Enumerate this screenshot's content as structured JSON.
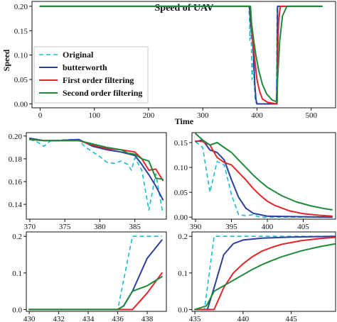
{
  "colors": {
    "Original": "#17becf",
    "butterworth": "#2b3f9e",
    "First order filtering": "#e3252b",
    "Second order filtering": "#1e8a3c"
  },
  "legend_entries": [
    "Original",
    "butterworth",
    "First order filtering",
    "Second order filtering"
  ],
  "chart_data": [
    {
      "type": "line",
      "title": "Speed of UAV",
      "xlabel": "Time",
      "ylabel": "Speed",
      "xlim": [
        -15,
        545
      ],
      "ylim": [
        -0.008,
        0.21
      ],
      "xticks": [
        0,
        100,
        200,
        300,
        400,
        500
      ],
      "yticks": [
        0.0,
        0.05,
        0.1,
        0.15,
        0.2
      ],
      "ytick_labels": [
        "0.00",
        "0.05",
        "0.10",
        "0.15",
        "0.20"
      ],
      "legend": "left",
      "series": [
        {
          "name": "Original",
          "dash": true,
          "points": [
            [
              0,
              0.2
            ],
            [
              385,
              0.2
            ],
            [
              386,
              0.18
            ],
            [
              387,
              0.13
            ],
            [
              388,
              0.2
            ],
            [
              389,
              0.15
            ],
            [
              391,
              0.05
            ],
            [
              393,
              0.09
            ],
            [
              395,
              0.04
            ],
            [
              397,
              0.005
            ],
            [
              400,
              0
            ],
            [
              436,
              0
            ],
            [
              437,
              0.2
            ],
            [
              520,
              0.2
            ]
          ]
        },
        {
          "name": "butterworth",
          "points": [
            [
              0,
              0.2
            ],
            [
              386,
              0.2
            ],
            [
              388,
              0.17
            ],
            [
              390,
              0.15
            ],
            [
              392,
              0.13
            ],
            [
              394,
              0.09
            ],
            [
              396,
              0.04
            ],
            [
              398,
              0.01
            ],
            [
              400,
              0
            ],
            [
              436,
              0
            ],
            [
              437,
              0.05
            ],
            [
              438,
              0.2
            ],
            [
              520,
              0.2
            ]
          ]
        },
        {
          "name": "First order filtering",
          "points": [
            [
              0,
              0.2
            ],
            [
              388,
              0.2
            ],
            [
              390,
              0.155
            ],
            [
              393,
              0.12
            ],
            [
              396,
              0.09
            ],
            [
              400,
              0.05
            ],
            [
              405,
              0.025
            ],
            [
              410,
              0.01
            ],
            [
              420,
              0.003
            ],
            [
              437,
              0
            ],
            [
              438,
              0.1
            ],
            [
              440,
              0.17
            ],
            [
              443,
              0.2
            ],
            [
              520,
              0.2
            ]
          ]
        },
        {
          "name": "Second order filtering",
          "points": [
            [
              0,
              0.2
            ],
            [
              388,
              0.2
            ],
            [
              390,
              0.165
            ],
            [
              394,
              0.13
            ],
            [
              398,
              0.1
            ],
            [
              403,
              0.07
            ],
            [
              410,
              0.04
            ],
            [
              418,
              0.02
            ],
            [
              428,
              0.008
            ],
            [
              437,
              0.004
            ],
            [
              438,
              0.05
            ],
            [
              442,
              0.13
            ],
            [
              447,
              0.18
            ],
            [
              455,
              0.2
            ],
            [
              520,
              0.2
            ]
          ]
        }
      ]
    },
    {
      "type": "line",
      "xlim": [
        369.5,
        389.5
      ],
      "ylim": [
        0.127,
        0.203
      ],
      "xticks": [
        370,
        375,
        380,
        385
      ],
      "yticks": [
        0.14,
        0.16,
        0.18,
        0.2
      ],
      "ytick_labels": [
        "0.14",
        "0.16",
        "0.18",
        "0.20"
      ],
      "series": [
        {
          "name": "Original",
          "dash": true,
          "points": [
            [
              370,
              0.197
            ],
            [
              371,
              0.195
            ],
            [
              372,
              0.191
            ],
            [
              373,
              0.196
            ],
            [
              376,
              0.197
            ],
            [
              377,
              0.196
            ],
            [
              378,
              0.19
            ],
            [
              379,
              0.186
            ],
            [
              380,
              0.182
            ],
            [
              381,
              0.177
            ],
            [
              382,
              0.176
            ],
            [
              383,
              0.178
            ],
            [
              384,
              0.175
            ],
            [
              384.5,
              0.17
            ],
            [
              385,
              0.181
            ],
            [
              386,
              0.17
            ],
            [
              387,
              0.135
            ],
            [
              388,
              0.167
            ],
            [
              389,
              0.132
            ]
          ]
        },
        {
          "name": "butterworth",
          "points": [
            [
              370,
              0.198
            ],
            [
              372,
              0.196
            ],
            [
              374,
              0.196
            ],
            [
              377,
              0.197
            ],
            [
              379,
              0.191
            ],
            [
              381,
              0.188
            ],
            [
              383,
              0.186
            ],
            [
              385,
              0.183
            ],
            [
              386,
              0.175
            ],
            [
              387,
              0.166
            ],
            [
              388,
              0.156
            ],
            [
              389,
              0.144
            ]
          ]
        },
        {
          "name": "First order filtering",
          "points": [
            [
              370,
              0.197
            ],
            [
              372,
              0.196
            ],
            [
              374,
              0.196
            ],
            [
              377,
              0.196
            ],
            [
              379,
              0.192
            ],
            [
              381,
              0.189
            ],
            [
              383,
              0.188
            ],
            [
              385,
              0.186
            ],
            [
              386,
              0.18
            ],
            [
              387,
              0.17
            ],
            [
              388,
              0.171
            ],
            [
              389,
              0.161
            ]
          ]
        },
        {
          "name": "Second order filtering",
          "points": [
            [
              370,
              0.197
            ],
            [
              372,
              0.196
            ],
            [
              374,
              0.196
            ],
            [
              377,
              0.196
            ],
            [
              379,
              0.193
            ],
            [
              381,
              0.19
            ],
            [
              383,
              0.188
            ],
            [
              384,
              0.185
            ],
            [
              385,
              0.184
            ],
            [
              386,
              0.18
            ],
            [
              387,
              0.178
            ],
            [
              388,
              0.163
            ],
            [
              389,
              0.162
            ]
          ]
        }
      ]
    },
    {
      "type": "line",
      "xlim": [
        389.5,
        409.5
      ],
      "ylim": [
        -0.004,
        0.17
      ],
      "xticks": [
        390,
        395,
        400,
        405
      ],
      "yticks": [
        0.0,
        0.05,
        0.1,
        0.15
      ],
      "ytick_labels": [
        "0.00",
        "0.05",
        "0.10",
        "0.15"
      ],
      "series": [
        {
          "name": "Original",
          "dash": true,
          "points": [
            [
              390,
              0.152
            ],
            [
              391,
              0.14
            ],
            [
              392,
              0.05
            ],
            [
              393,
              0.112
            ],
            [
              394,
              0.105
            ],
            [
              395,
              0.045
            ],
            [
              396,
              0.005
            ],
            [
              397,
              0.003
            ],
            [
              398,
              0.005
            ],
            [
              399,
              0
            ],
            [
              409,
              0
            ]
          ]
        },
        {
          "name": "butterworth",
          "points": [
            [
              390,
              0.152
            ],
            [
              391,
              0.155
            ],
            [
              392,
              0.135
            ],
            [
              393,
              0.13
            ],
            [
              394,
              0.115
            ],
            [
              395,
              0.075
            ],
            [
              396,
              0.04
            ],
            [
              397,
              0.018
            ],
            [
              398,
              0.008
            ],
            [
              400,
              0.002
            ],
            [
              409,
              0
            ]
          ]
        },
        {
          "name": "First order filtering",
          "points": [
            [
              390,
              0.153
            ],
            [
              391,
              0.152
            ],
            [
              392,
              0.145
            ],
            [
              393,
              0.12
            ],
            [
              394,
              0.11
            ],
            [
              395,
              0.105
            ],
            [
              396,
              0.09
            ],
            [
              397,
              0.075
            ],
            [
              398,
              0.058
            ],
            [
              399,
              0.044
            ],
            [
              400,
              0.032
            ],
            [
              401,
              0.024
            ],
            [
              403,
              0.013
            ],
            [
              405,
              0.007
            ],
            [
              407,
              0.004
            ],
            [
              409,
              0.002
            ]
          ]
        },
        {
          "name": "Second order filtering",
          "points": [
            [
              390,
              0.168
            ],
            [
              391,
              0.155
            ],
            [
              392,
              0.145
            ],
            [
              393,
              0.15
            ],
            [
              394,
              0.14
            ],
            [
              395,
              0.13
            ],
            [
              396,
              0.115
            ],
            [
              397,
              0.1
            ],
            [
              398,
              0.085
            ],
            [
              399,
              0.072
            ],
            [
              400,
              0.06
            ],
            [
              402,
              0.043
            ],
            [
              404,
              0.031
            ],
            [
              406,
              0.023
            ],
            [
              408,
              0.017
            ],
            [
              409,
              0.015
            ]
          ]
        }
      ]
    },
    {
      "type": "line",
      "xlim": [
        429.8,
        439.3
      ],
      "ylim": [
        -0.005,
        0.212
      ],
      "xticks": [
        430,
        432,
        434,
        436,
        438
      ],
      "yticks": [
        0.0,
        0.1,
        0.2
      ],
      "ytick_labels": [
        "0.0",
        "0.1",
        "0.2"
      ],
      "series": [
        {
          "name": "Original",
          "dash": true,
          "points": [
            [
              430,
              0
            ],
            [
              436,
              0
            ],
            [
              437,
              0.2
            ],
            [
              439,
              0.2
            ]
          ]
        },
        {
          "name": "butterworth",
          "points": [
            [
              430,
              0
            ],
            [
              436,
              0
            ],
            [
              436.4,
              0.01
            ],
            [
              437,
              0.05
            ],
            [
              438,
              0.14
            ],
            [
              439,
              0.19
            ]
          ]
        },
        {
          "name": "First order filtering",
          "points": [
            [
              430,
              0
            ],
            [
              437,
              0
            ],
            [
              438,
              0.045
            ],
            [
              439,
              0.1
            ]
          ]
        },
        {
          "name": "Second order filtering",
          "points": [
            [
              430,
              0
            ],
            [
              436,
              0
            ],
            [
              436.4,
              0.01
            ],
            [
              437,
              0.05
            ],
            [
              438,
              0.065
            ],
            [
              439,
              0.09
            ]
          ]
        }
      ]
    },
    {
      "type": "line",
      "xlim": [
        434.7,
        449.6
      ],
      "ylim": [
        -0.005,
        0.212
      ],
      "xticks": [
        435,
        440,
        445
      ],
      "yticks": [
        0.0,
        0.1,
        0.2
      ],
      "ytick_labels": [
        "0.0",
        "0.1",
        "0.2"
      ],
      "series": [
        {
          "name": "Original",
          "dash": true,
          "points": [
            [
              435,
              0
            ],
            [
              436,
              0
            ],
            [
              437,
              0.2
            ],
            [
              449.5,
              0.2
            ]
          ]
        },
        {
          "name": "butterworth",
          "points": [
            [
              435,
              0
            ],
            [
              436.3,
              0
            ],
            [
              437,
              0.06
            ],
            [
              438,
              0.15
            ],
            [
              439,
              0.18
            ],
            [
              440,
              0.19
            ],
            [
              442,
              0.195
            ],
            [
              445,
              0.198
            ],
            [
              449.5,
              0.2
            ]
          ]
        },
        {
          "name": "First order filtering",
          "points": [
            [
              435,
              0
            ],
            [
              437,
              0
            ],
            [
              438,
              0.06
            ],
            [
              439,
              0.1
            ],
            [
              440,
              0.125
            ],
            [
              441,
              0.145
            ],
            [
              442,
              0.16
            ],
            [
              443,
              0.17
            ],
            [
              444,
              0.178
            ],
            [
              446,
              0.188
            ],
            [
              448,
              0.194
            ],
            [
              449.5,
              0.197
            ]
          ]
        },
        {
          "name": "Second order filtering",
          "points": [
            [
              435,
              0
            ],
            [
              436.2,
              0.01
            ],
            [
              437,
              0.05
            ],
            [
              438,
              0.065
            ],
            [
              439,
              0.08
            ],
            [
              440,
              0.095
            ],
            [
              441,
              0.11
            ],
            [
              442,
              0.123
            ],
            [
              443,
              0.134
            ],
            [
              444,
              0.144
            ],
            [
              446,
              0.16
            ],
            [
              448,
              0.172
            ],
            [
              449.5,
              0.179
            ]
          ]
        }
      ]
    }
  ]
}
